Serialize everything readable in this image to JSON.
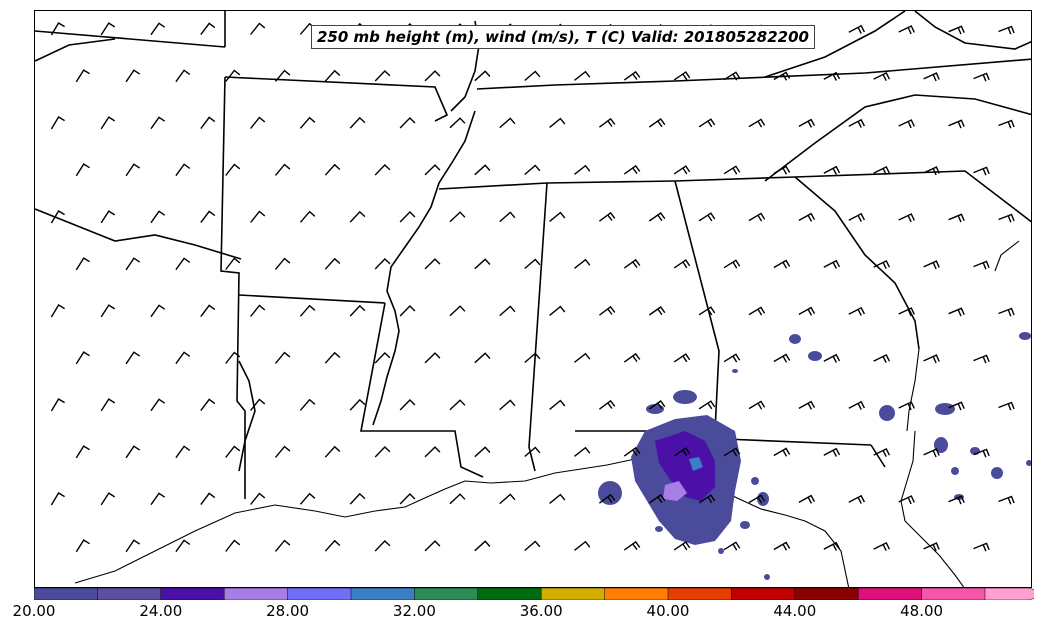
{
  "title": "250 mb height (m), wind (m/s), T (C) Valid: 201805282200",
  "colorbar": {
    "ticks": [
      "20.00",
      "24.00",
      "28.00",
      "32.00",
      "36.00",
      "40.00",
      "44.00",
      "48.00"
    ],
    "colors": [
      "#4b4b9b",
      "#5c4ea0",
      "#4a10a8",
      "#a77de6",
      "#6f6ff7",
      "#3a7fc6",
      "#2e8b57",
      "#006a12",
      "#d4ae00",
      "#ff8000",
      "#e63d00",
      "#c30000",
      "#8b0000",
      "#e0107a",
      "#f556a8",
      "#ff9fd0"
    ]
  }
}
